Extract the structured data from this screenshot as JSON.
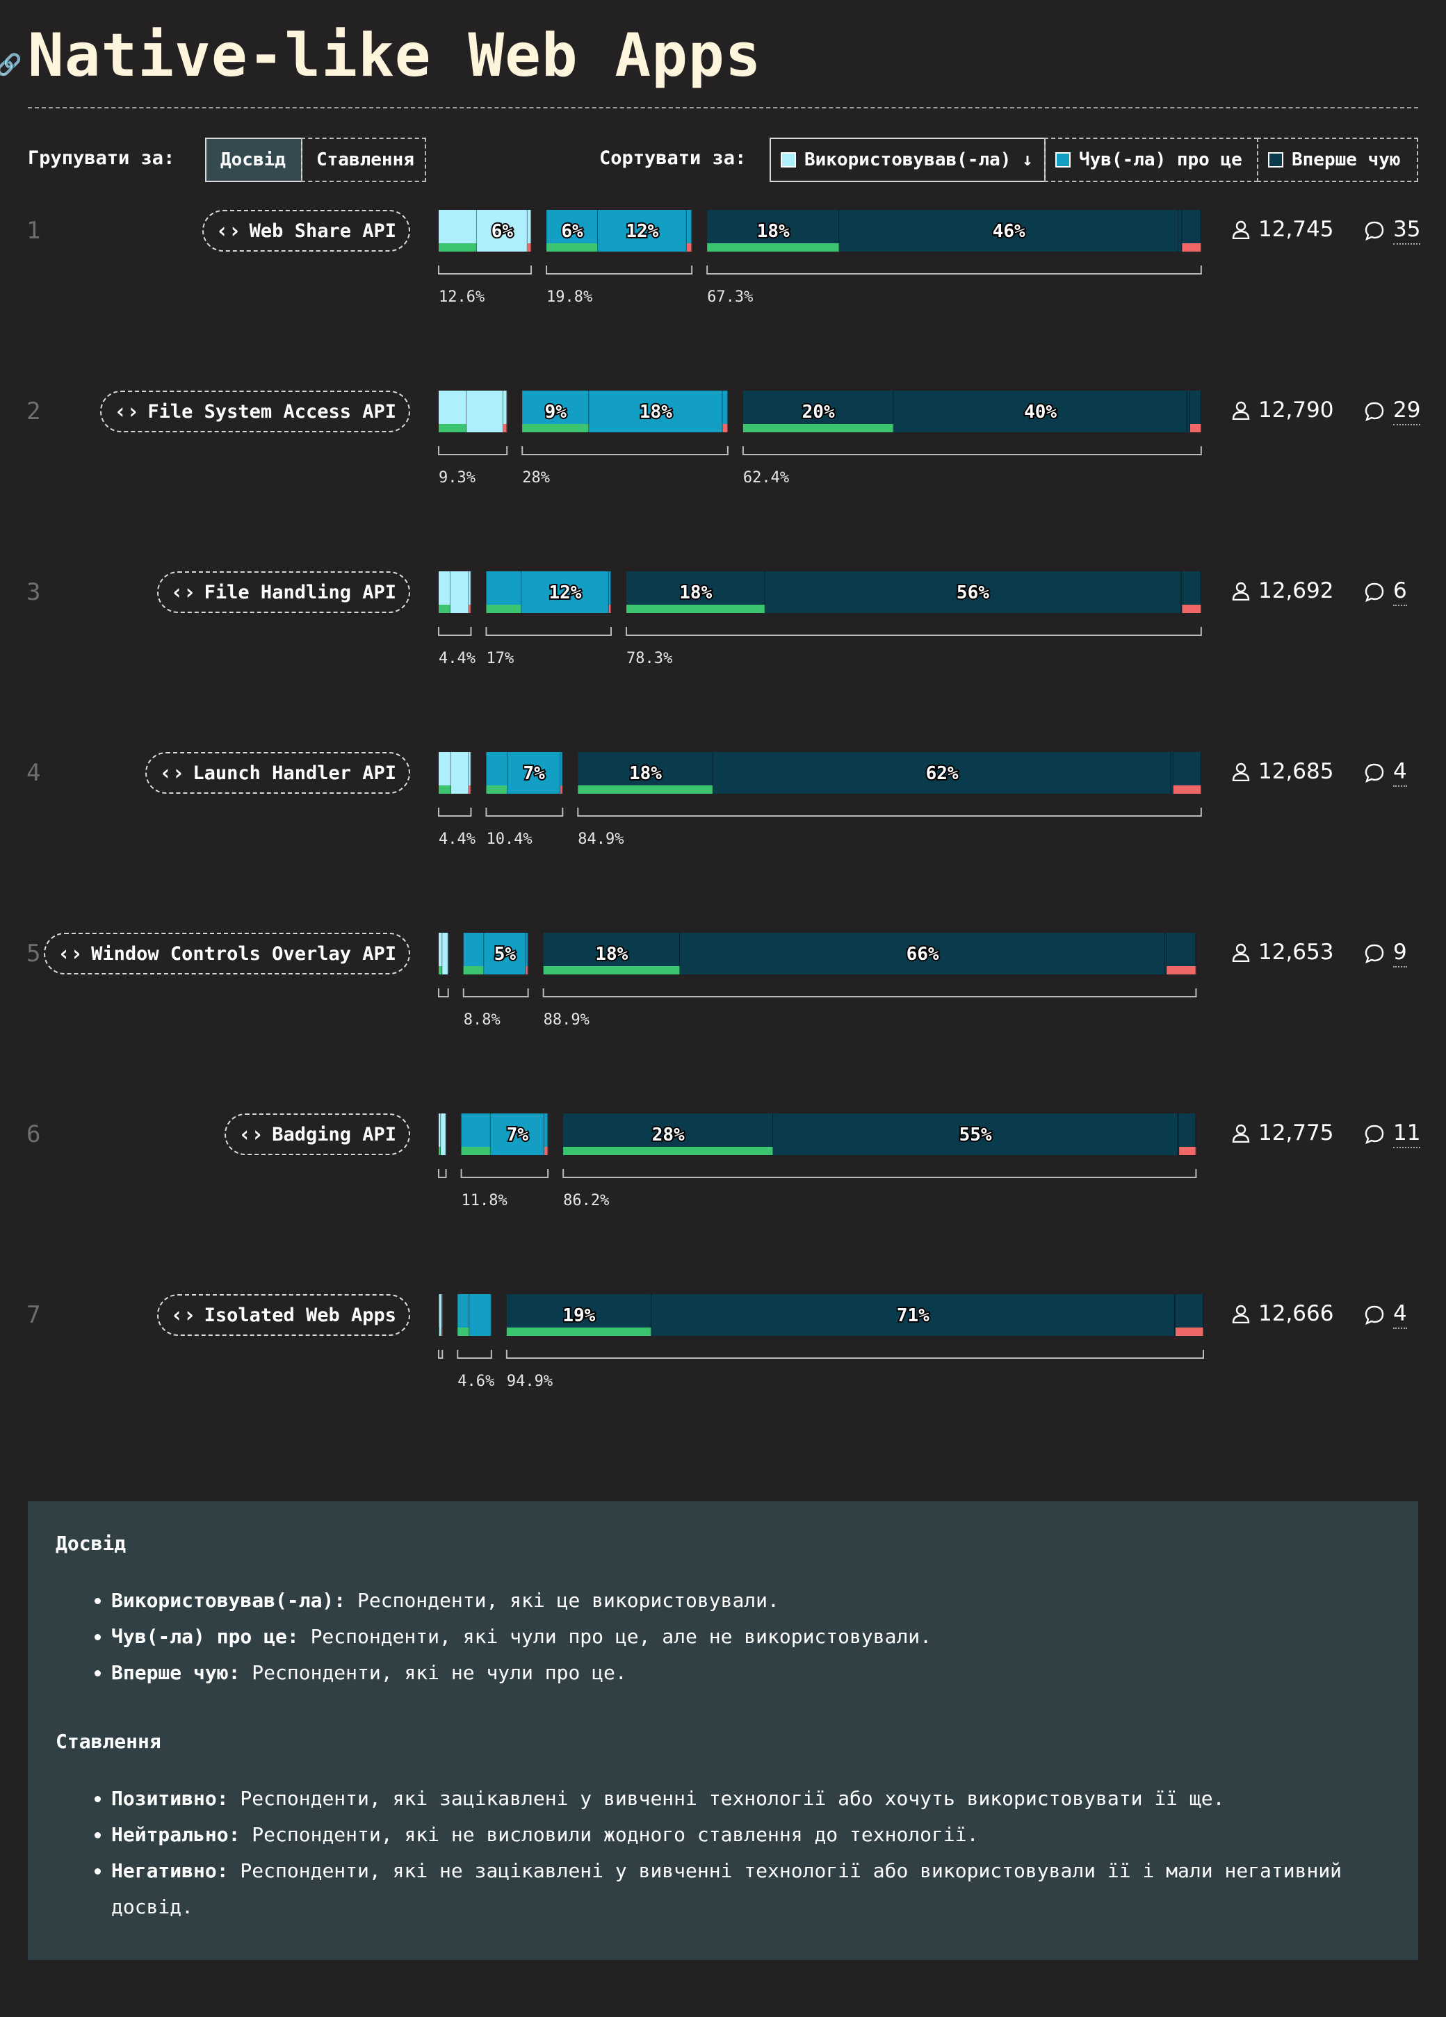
{
  "title": "Native-like Web Apps",
  "controls": {
    "group_label": "Групувати за:",
    "group_options": [
      "Досвід",
      "Ставлення"
    ],
    "sort_label": "Сортувати за:",
    "sort_options": [
      "Використовував(-ла) ↓",
      "Чув(-ла) про це",
      "Вперше чую"
    ]
  },
  "colors": {
    "used": "#aeeffd",
    "heard": "#139ec4",
    "never": "#0a3b4d",
    "positive": "#3cc470",
    "negative": "#f06767",
    "background": "#242122"
  },
  "chart_data": {
    "type": "bar",
    "stacked": true,
    "categories": [
      "Web Share API",
      "File System Access API",
      "File Handling API",
      "Launch Handler API",
      "Window Controls Overlay API",
      "Badging API",
      "Isolated Web Apps"
    ],
    "series": [
      {
        "name": "Використовував(-ла)",
        "values": [
          12.6,
          9.3,
          4.4,
          4.4,
          1.3,
          1.0,
          0.5
        ]
      },
      {
        "name": "Чув(-ла) про це",
        "values": [
          19.8,
          28.0,
          17.0,
          10.4,
          8.8,
          11.8,
          4.6
        ]
      },
      {
        "name": "Вперше чую",
        "values": [
          67.3,
          62.4,
          78.3,
          84.9,
          88.9,
          86.2,
          94.9
        ]
      }
    ],
    "total_labels": [
      [
        "12.6%",
        "19.8%",
        "67.3%"
      ],
      [
        "9.3%",
        "28%",
        "62.4%"
      ],
      [
        "4.4%",
        "17%",
        "78.3%"
      ],
      [
        "4.4%",
        "10.4%",
        "84.9%"
      ],
      [
        "",
        "8.8%",
        "88.9%"
      ],
      [
        "",
        "11.8%",
        "86.2%"
      ],
      [
        "",
        "4.6%",
        "94.9%"
      ]
    ],
    "segments": [
      [
        {
          "p": 5.2,
          "pl": ""
        },
        {
          "p": 6.9,
          "pl": "6%"
        },
        {
          "p": 0.5,
          "pl": ""
        },
        {
          "p": 7.0,
          "pl": "6%"
        },
        {
          "p": 12.1,
          "pl": "12%"
        },
        {
          "p": 0.7,
          "pl": ""
        },
        {
          "p": 18.0,
          "pl": "18%"
        },
        {
          "p": 46.2,
          "pl": "46%"
        },
        {
          "p": 0.5,
          "pl": ""
        },
        {
          "p": 2.6,
          "pl": ""
        }
      ],
      [
        {
          "p": 3.8,
          "pl": ""
        },
        {
          "p": 5.0,
          "pl": ""
        },
        {
          "p": 0.5,
          "pl": ""
        },
        {
          "p": 9.1,
          "pl": "9%"
        },
        {
          "p": 18.2,
          "pl": "18%"
        },
        {
          "p": 0.7,
          "pl": ""
        },
        {
          "p": 20.5,
          "pl": "20%"
        },
        {
          "p": 40.0,
          "pl": "40%"
        },
        {
          "p": 0.4,
          "pl": ""
        },
        {
          "p": 1.5,
          "pl": ""
        }
      ],
      [
        {
          "p": 1.6,
          "pl": ""
        },
        {
          "p": 2.5,
          "pl": ""
        },
        {
          "p": 0.3,
          "pl": ""
        },
        {
          "p": 4.8,
          "pl": ""
        },
        {
          "p": 11.9,
          "pl": "12%"
        },
        {
          "p": 0.3,
          "pl": ""
        },
        {
          "p": 18.9,
          "pl": "18%"
        },
        {
          "p": 56.6,
          "pl": "56%"
        },
        {
          "p": 0.2,
          "pl": ""
        },
        {
          "p": 2.6,
          "pl": ""
        }
      ],
      [
        {
          "p": 1.7,
          "pl": ""
        },
        {
          "p": 2.4,
          "pl": ""
        },
        {
          "p": 0.3,
          "pl": ""
        },
        {
          "p": 2.9,
          "pl": ""
        },
        {
          "p": 7.2,
          "pl": "7%"
        },
        {
          "p": 0.3,
          "pl": ""
        },
        {
          "p": 18.4,
          "pl": "18%"
        },
        {
          "p": 62.4,
          "pl": "62%"
        },
        {
          "p": 0.3,
          "pl": ""
        },
        {
          "p": 3.8,
          "pl": ""
        }
      ],
      [
        {
          "p": 0.5,
          "pl": ""
        },
        {
          "p": 0.8,
          "pl": ""
        },
        {
          "p": 0.0,
          "pl": ""
        },
        {
          "p": 2.8,
          "pl": ""
        },
        {
          "p": 5.7,
          "pl": "5%"
        },
        {
          "p": 0.3,
          "pl": ""
        },
        {
          "p": 18.6,
          "pl": "18%"
        },
        {
          "p": 66.1,
          "pl": "66%"
        },
        {
          "p": 0.2,
          "pl": ""
        },
        {
          "p": 4.0,
          "pl": ""
        }
      ],
      [
        {
          "p": 0.3,
          "pl": ""
        },
        {
          "p": 0.7,
          "pl": ""
        },
        {
          "p": 0.0,
          "pl": ""
        },
        {
          "p": 4.0,
          "pl": ""
        },
        {
          "p": 7.3,
          "pl": "7%"
        },
        {
          "p": 0.5,
          "pl": ""
        },
        {
          "p": 28.6,
          "pl": "28%"
        },
        {
          "p": 55.1,
          "pl": "55%"
        },
        {
          "p": 0.2,
          "pl": ""
        },
        {
          "p": 2.3,
          "pl": ""
        }
      ],
      [
        {
          "p": 0.1,
          "pl": ""
        },
        {
          "p": 0.3,
          "pl": ""
        },
        {
          "p": 0.1,
          "pl": ""
        },
        {
          "p": 1.6,
          "pl": ""
        },
        {
          "p": 3.0,
          "pl": ""
        },
        {
          "p": 0.0,
          "pl": ""
        },
        {
          "p": 19.7,
          "pl": "19%"
        },
        {
          "p": 71.3,
          "pl": "71%"
        },
        {
          "p": 0.1,
          "pl": ""
        },
        {
          "p": 3.8,
          "pl": ""
        }
      ]
    ],
    "respondents": [
      "12,745",
      "12,790",
      "12,692",
      "12,685",
      "12,653",
      "12,775",
      "12,666"
    ],
    "comments": [
      "35",
      "29",
      "6",
      "4",
      "9",
      "11",
      "4"
    ]
  },
  "legend": {
    "sections": [
      {
        "heading": "Досвід",
        "items": [
          {
            "term": "Використовував(-ла):",
            "text": " Респонденти, які це використовували."
          },
          {
            "term": "Чув(-ла) про це:",
            "text": " Респонденти, які чули про це, але не використовували."
          },
          {
            "term": "Вперше чую:",
            "text": " Респонденти, які не чули про це."
          }
        ]
      },
      {
        "heading": "Ставлення",
        "items": [
          {
            "term": "Позитивно:",
            "text": " Респонденти, які зацікавлені у вивченні технології або хочуть використовувати її ще."
          },
          {
            "term": "Нейтрально:",
            "text": " Респонденти, які не висловили жодного ставлення до технології."
          },
          {
            "term": "Негативно:",
            "text": " Респонденти, які не зацікавлені у вивченні технології або використовували її і мали негативний досвід."
          }
        ]
      }
    ]
  }
}
